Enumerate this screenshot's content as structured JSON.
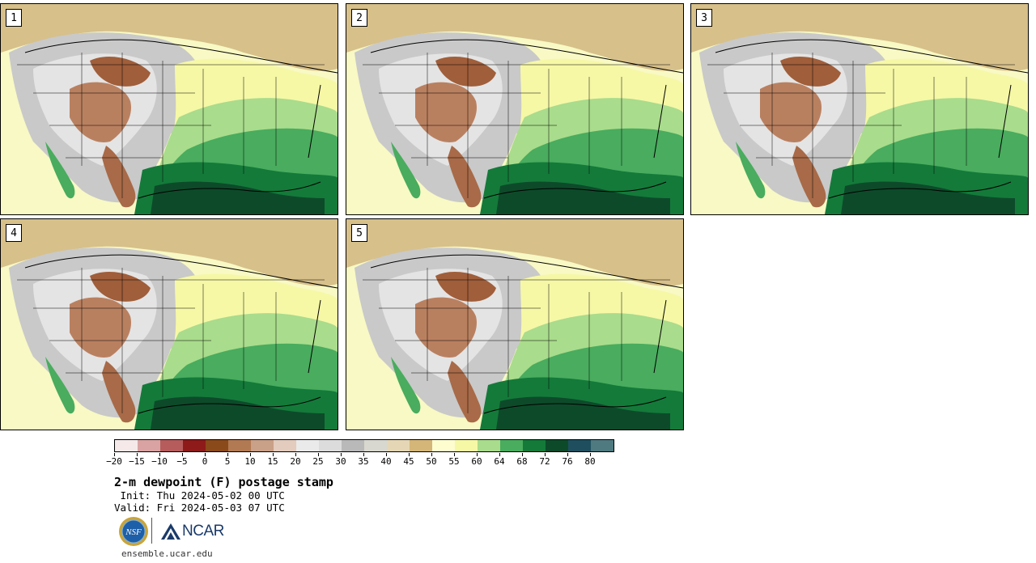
{
  "panels": [
    {
      "number": "1"
    },
    {
      "number": "2"
    },
    {
      "number": "3"
    },
    {
      "number": "4"
    },
    {
      "number": "5"
    }
  ],
  "colorbar": {
    "colors": [
      "#f5e9e9",
      "#d9a3a3",
      "#b65c5c",
      "#8e1a1a",
      "#8a4a1a",
      "#b27a52",
      "#c9a088",
      "#e3cbbd",
      "#eaeaea",
      "#dcdcdc",
      "#b9b9b9",
      "#d8d8d0",
      "#e5d7b5",
      "#d4b679",
      "#fdfdd0",
      "#f6f8a6",
      "#a9dc8c",
      "#49ac5e",
      "#147a3a",
      "#0d4a2a",
      "#1f4f5f",
      "#4f7a80"
    ],
    "labels": [
      "−20",
      "−15",
      "−10",
      "−5",
      "0",
      "5",
      "10",
      "15",
      "20",
      "25",
      "30",
      "35",
      "40",
      "45",
      "50",
      "55",
      "60",
      "64",
      "68",
      "72",
      "76",
      "80"
    ]
  },
  "title": "2-m dewpoint (F) postage stamp",
  "init": " Init: Thu 2024-05-02 00 UTC",
  "valid": "Valid: Fri 2024-05-03 07 UTC",
  "logos": {
    "nsf": "NSF",
    "ncar": "NCAR"
  },
  "website": "ensemble.ucar.edu"
}
